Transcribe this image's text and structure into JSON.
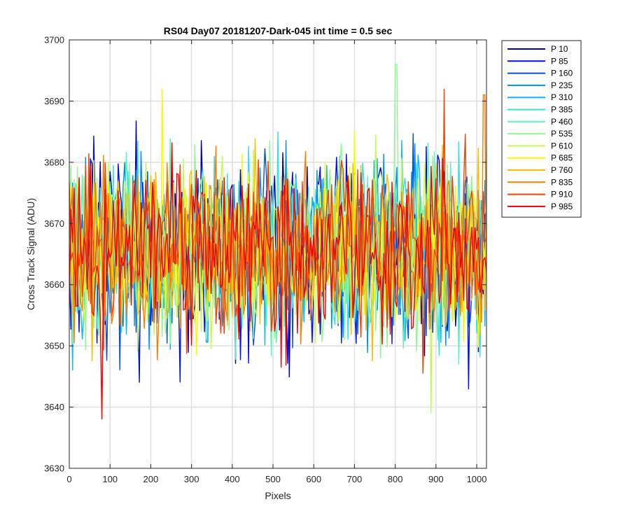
{
  "chart_data": {
    "type": "line",
    "title": "RS04 Day07 20181207-Dark-045 int time = 0.5 sec",
    "xlabel": "Pixels",
    "ylabel": "Cross Track Signal (ADU)",
    "xlim": [
      0,
      1024
    ],
    "ylim": [
      3630,
      3700
    ],
    "xticks": [
      0,
      100,
      200,
      300,
      400,
      500,
      600,
      700,
      800,
      900,
      1000
    ],
    "yticks": [
      3630,
      3640,
      3650,
      3660,
      3670,
      3680,
      3690,
      3700
    ],
    "grid": true,
    "legend_position": "outside-top-right",
    "noise_mean": 3665.5,
    "noise_sigma": 7,
    "x_step": 4,
    "series": [
      {
        "name": "P 10",
        "color": "#0000b0"
      },
      {
        "name": "P 85",
        "color": "#0010e0"
      },
      {
        "name": "P 160",
        "color": "#0050e8"
      },
      {
        "name": "P 235",
        "color": "#0090f0"
      },
      {
        "name": "P 310",
        "color": "#10b8f0"
      },
      {
        "name": "P 385",
        "color": "#30e0e8"
      },
      {
        "name": "P 460",
        "color": "#60f0c0"
      },
      {
        "name": "P 535",
        "color": "#90f890"
      },
      {
        "name": "P 610",
        "color": "#c8f850"
      },
      {
        "name": "P 685",
        "color": "#f8f800"
      },
      {
        "name": "P 760",
        "color": "#f8c000"
      },
      {
        "name": "P 835",
        "color": "#f88000"
      },
      {
        "name": "P 910",
        "color": "#f84000"
      },
      {
        "name": "P 985",
        "color": "#f00000"
      }
    ],
    "peaks": [
      {
        "series": "P 535",
        "x": 802,
        "y": 3696
      },
      {
        "series": "P 910",
        "x": 920,
        "y": 3692
      },
      {
        "series": "P 685",
        "x": 228,
        "y": 3692
      },
      {
        "series": "P 985",
        "x": 80,
        "y": 3638
      },
      {
        "series": "P 610",
        "x": 888,
        "y": 3639
      },
      {
        "series": "P 835",
        "x": 1018,
        "y": 3691
      }
    ]
  }
}
